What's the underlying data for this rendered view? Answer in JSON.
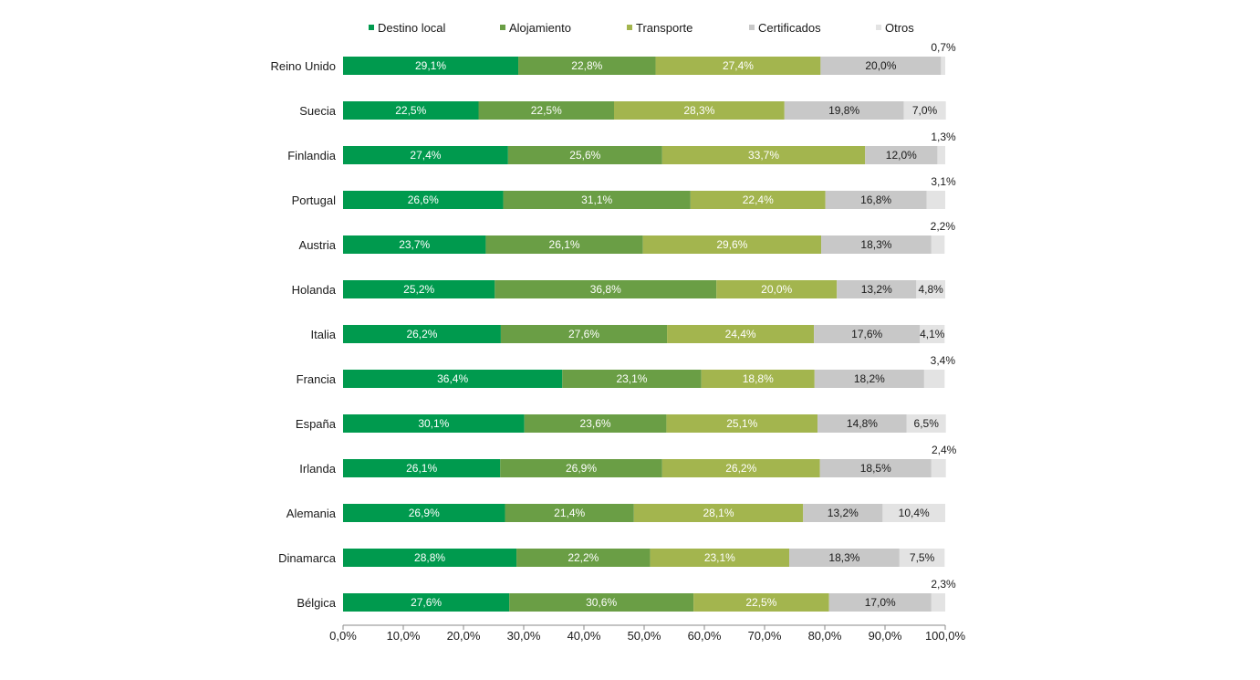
{
  "chart_data": {
    "type": "bar",
    "orientation": "horizontal",
    "stacked": true,
    "series": [
      {
        "name": "Destino local",
        "color": "#009a4e"
      },
      {
        "name": "Alojamiento",
        "color": "#6a9e45"
      },
      {
        "name": "Transporte",
        "color": "#a3b54e"
      },
      {
        "name": "Certificados",
        "color": "#c8c8c8"
      },
      {
        "name": "Otros",
        "color": "#e3e3e3"
      }
    ],
    "categories": [
      "Reino Unido",
      "Suecia",
      "Finlandia",
      "Portugal",
      "Austria",
      "Holanda",
      "Italia",
      "Francia",
      "España",
      "Irlanda",
      "Alemania",
      "Dinamarca",
      "Bélgica"
    ],
    "values": [
      [
        29.1,
        22.8,
        27.4,
        20.0,
        0.7
      ],
      [
        22.5,
        22.5,
        28.3,
        19.8,
        7.0
      ],
      [
        27.4,
        25.6,
        33.7,
        12.0,
        1.3
      ],
      [
        26.6,
        31.1,
        22.4,
        16.8,
        3.1
      ],
      [
        23.7,
        26.1,
        29.6,
        18.3,
        2.2
      ],
      [
        25.2,
        36.8,
        20.0,
        13.2,
        4.8
      ],
      [
        26.2,
        27.6,
        24.4,
        17.6,
        4.1
      ],
      [
        36.4,
        23.1,
        18.8,
        18.2,
        3.4
      ],
      [
        30.1,
        23.6,
        25.1,
        14.8,
        6.5
      ],
      [
        26.1,
        26.9,
        26.2,
        18.5,
        2.4
      ],
      [
        26.9,
        21.4,
        28.1,
        13.2,
        10.4
      ],
      [
        28.8,
        22.2,
        23.1,
        18.3,
        7.5
      ],
      [
        27.6,
        30.6,
        22.5,
        17.0,
        2.3
      ]
    ],
    "labels": [
      [
        "29,1%",
        "22,8%",
        "27,4%",
        "20,0%",
        "0,7%"
      ],
      [
        "22,5%",
        "22,5%",
        "28,3%",
        "19,8%",
        "7,0%"
      ],
      [
        "27,4%",
        "25,6%",
        "33,7%",
        "12,0%",
        "1,3%"
      ],
      [
        "26,6%",
        "31,1%",
        "22,4%",
        "16,8%",
        "3,1%"
      ],
      [
        "23,7%",
        "26,1%",
        "29,6%",
        "18,3%",
        "2,2%"
      ],
      [
        "25,2%",
        "36,8%",
        "20,0%",
        "13,2%",
        "4,8%"
      ],
      [
        "26,2%",
        "27,6%",
        "24,4%",
        "17,6%",
        "4,1%"
      ],
      [
        "36,4%",
        "23,1%",
        "18,8%",
        "18,2%",
        "3,4%"
      ],
      [
        "30,1%",
        "23,6%",
        "25,1%",
        "14,8%",
        "6,5%"
      ],
      [
        "26,1%",
        "26,9%",
        "26,2%",
        "18,5%",
        "2,4%"
      ],
      [
        "26,9%",
        "21,4%",
        "28,1%",
        "13,2%",
        "10,4%"
      ],
      [
        "28,8%",
        "22,2%",
        "23,1%",
        "18,3%",
        "7,5%"
      ],
      [
        "27,6%",
        "30,6%",
        "22,5%",
        "17,0%",
        "2,3%"
      ]
    ],
    "xlim": [
      0,
      100
    ],
    "xticks": [
      0,
      10,
      20,
      30,
      40,
      50,
      60,
      70,
      80,
      90,
      100
    ],
    "xtick_labels": [
      "0,0%",
      "10,0%",
      "20,0%",
      "30,0%",
      "40,0%",
      "50,0%",
      "60,0%",
      "70,0%",
      "80,0%",
      "90,0%",
      "100,0%"
    ],
    "legend_position": "top",
    "grid": false
  }
}
